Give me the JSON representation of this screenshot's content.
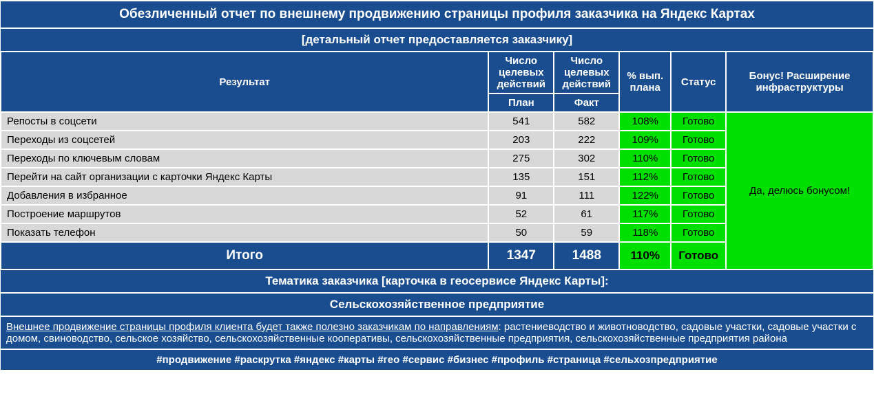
{
  "colors": {
    "header_bg": "#1a4d8f",
    "header_fg": "#ffffff",
    "data_bg": "#d8d8d8",
    "data_fg": "#000000",
    "green_bg": "#00e000",
    "green_fg": "#000000",
    "border": "#ffffff"
  },
  "header": {
    "title": "Обезличенный отчет по внешнему продвижению страницы профиля заказчика на Яндекс Картах",
    "subtitle": "[детальный отчет предоставляется заказчику]"
  },
  "columns": {
    "result": "Результат",
    "actions": "Число целевых действий",
    "plan": "План",
    "fact": "Факт",
    "pct": "% вып. плана",
    "status": "Статус",
    "bonus": "Бонус! Расширение инфраструктуры"
  },
  "rows": [
    {
      "label": "Репосты в соцсети",
      "plan": 541,
      "fact": 582,
      "pct": "108%",
      "status": "Готово"
    },
    {
      "label": "Переходы из соцсетей",
      "plan": 203,
      "fact": 222,
      "pct": "109%",
      "status": "Готово"
    },
    {
      "label": "Переходы по ключевым словам",
      "plan": 275,
      "fact": 302,
      "pct": "110%",
      "status": "Готово"
    },
    {
      "label": "Перейти на сайт организации с карточки Яндекс Карты",
      "plan": 135,
      "fact": 151,
      "pct": "112%",
      "status": "Готово"
    },
    {
      "label": "Добавления в избранное",
      "plan": 91,
      "fact": 111,
      "pct": "122%",
      "status": "Готово"
    },
    {
      "label": "Построение маршрутов",
      "plan": 52,
      "fact": 61,
      "pct": "117%",
      "status": "Готово"
    },
    {
      "label": "Показать телефон",
      "plan": 50,
      "fact": 59,
      "pct": "118%",
      "status": "Готово"
    }
  ],
  "bonus_text": "Да, делюсь бонусом!",
  "total": {
    "label": "Итого",
    "plan": 1347,
    "fact": 1488,
    "pct": "110%",
    "status": "Готово"
  },
  "footer": {
    "theme_label": "Тематика заказчика [карточка в геосервисе Яндекс Карты]:",
    "theme_value": "Сельскохозяйственное предприятие",
    "promo_underlined": "Внешнее продвижение страницы профиля клиента будет также полезно заказчикам по направлениям",
    "promo_rest": ": растениеводство и животноводство, садовые участки, садовые участки с домом, свиноводство, сельское хозяйство, сельскохозяйственные кооперативы, сельскохозяйственные предприятия, сельскохозяйственные предприятия района",
    "tags": "#продвижение #раскрутка #яндекс #карты #гео #сервис #бизнес #профиль #страница #сельхозпредприятие"
  }
}
